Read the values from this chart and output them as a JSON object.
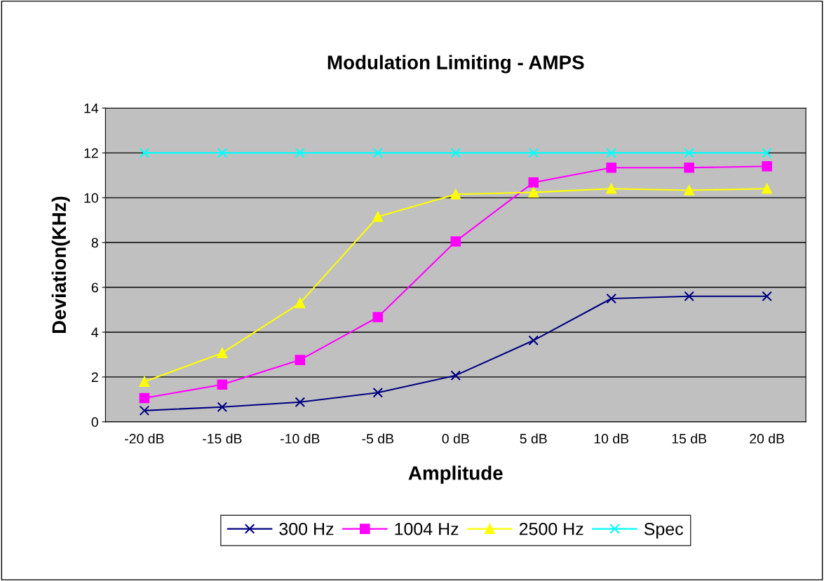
{
  "chart_data": {
    "type": "line",
    "title": "Modulation Limiting - AMPS",
    "xlabel": "Amplitude",
    "ylabel": "Deviation(KHz)",
    "categories": [
      "-20 dB",
      "-15 dB",
      "-10 dB",
      "-5 dB",
      "0 dB",
      "5 dB",
      "10 dB",
      "15 dB",
      "20 dB"
    ],
    "series": [
      {
        "name": "300 Hz",
        "color": "#000080",
        "marker": "cross",
        "values": [
          0.5,
          0.66,
          0.88,
          1.3,
          2.07,
          3.63,
          5.5,
          5.6,
          5.6
        ]
      },
      {
        "name": "1004 Hz",
        "color": "#ff00ff",
        "marker": "square",
        "values": [
          1.06,
          1.66,
          2.76,
          4.67,
          8.05,
          10.68,
          11.34,
          11.34,
          11.4
        ]
      },
      {
        "name": "2500 Hz",
        "color": "#ffff00",
        "marker": "triangle",
        "values": [
          1.79,
          3.07,
          5.3,
          9.15,
          10.15,
          10.24,
          10.4,
          10.33,
          10.4
        ]
      },
      {
        "name": "Spec",
        "color": "#00ffff",
        "marker": "cross",
        "values": [
          12,
          12,
          12,
          12,
          12,
          12,
          12,
          12,
          12
        ]
      }
    ],
    "ylim": [
      0,
      14
    ],
    "yticks": [
      0,
      2,
      4,
      6,
      8,
      10,
      12,
      14
    ],
    "grid": "y",
    "legend": "bottom"
  }
}
